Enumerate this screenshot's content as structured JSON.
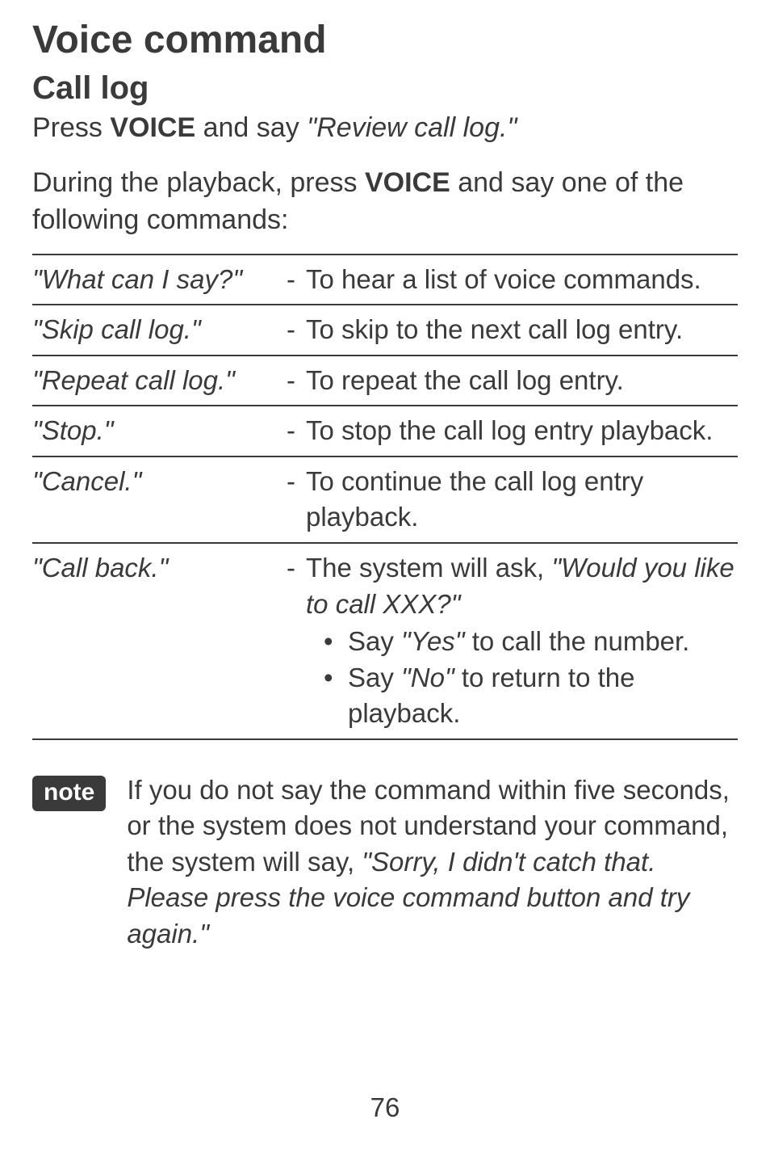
{
  "title": "Voice command",
  "subtitle": "Call log",
  "intro1_prefix": "Press ",
  "intro1_bold": "VOICE",
  "intro1_mid": " and say ",
  "intro1_italic": "\"Review call log.\"",
  "intro2_prefix": "During the playback, press ",
  "intro2_bold": "VOICE",
  "intro2_suffix": " and say one of the following commands:",
  "rows": {
    "r0": {
      "cmd": "\"What can I say?\"",
      "desc": "To hear a list of voice commands."
    },
    "r1": {
      "cmd": "\"Skip call log.\"",
      "desc": "To skip to the next call log entry."
    },
    "r2": {
      "cmd": "\"Repeat call log.\"",
      "desc": "To repeat the call log entry."
    },
    "r3": {
      "cmd": "\"Stop.\"",
      "desc": "To stop the call log entry playback."
    },
    "r4": {
      "cmd": "\"Cancel.\"",
      "desc": "To continue the call log entry playback."
    },
    "r5": {
      "cmd": "\"Call back.\"",
      "desc_p1": "The system will ask, ",
      "desc_it": "\"Would you like to call XXX?\"",
      "b1_p1": "Say ",
      "b1_it": "\"Yes\"",
      "b1_p2": " to call the number.",
      "b2_p1": "Say ",
      "b2_it": "\"No\"",
      "b2_p2": " to return to the playback."
    }
  },
  "note_label": "note",
  "note_p1": "If you do not say the command within five seconds, or the system does not understand your command, the system will say, ",
  "note_it": "\"Sorry, I didn't catch that. Please press the voice command button and try again.\"",
  "page_number": "76"
}
